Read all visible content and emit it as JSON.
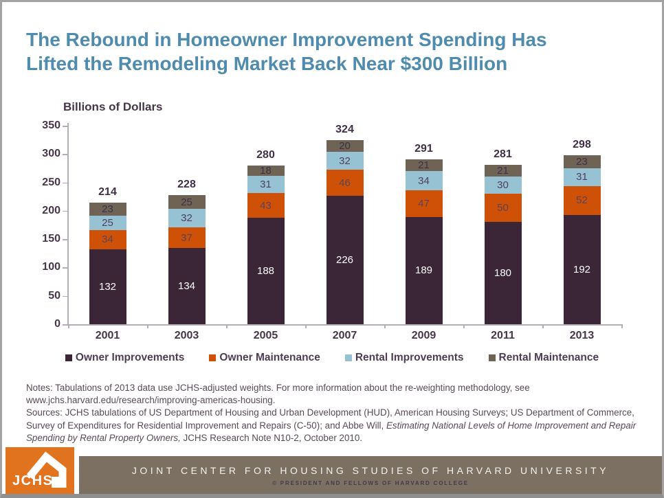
{
  "slide": {
    "title": "The Rebound in Homeowner Improvement Spending Has\nLifted the Remodeling Market Back Near $300 Billion"
  },
  "chart_data": {
    "type": "bar",
    "stacked": true,
    "title": "Billions of Dollars",
    "categories": [
      "2001",
      "2003",
      "2005",
      "2007",
      "2009",
      "2011",
      "2013"
    ],
    "series": [
      {
        "name": "Owner Improvements",
        "color": "#3a2637",
        "label_color": "#ffffff",
        "values": [
          132,
          134,
          188,
          226,
          189,
          180,
          192
        ]
      },
      {
        "name": "Owner Maintenance",
        "color": "#cf5107",
        "label_color": "#5c4456",
        "values": [
          34,
          37,
          43,
          46,
          47,
          50,
          52
        ]
      },
      {
        "name": "Rental Improvements",
        "color": "#96c2d4",
        "label_color": "#4f4159",
        "values": [
          25,
          32,
          31,
          32,
          34,
          30,
          31
        ]
      },
      {
        "name": "Rental Maintenance",
        "color": "#6f6355",
        "label_color": "#3c3145",
        "values": [
          23,
          25,
          18,
          20,
          21,
          21,
          23
        ]
      }
    ],
    "totals": [
      214,
      228,
      280,
      324,
      291,
      281,
      298
    ],
    "ylabel": "Billions of Dollars",
    "xlabel": "",
    "ylim": [
      0,
      350
    ],
    "y_tick_step": 50,
    "grid": false,
    "legend_position": "bottom"
  },
  "notes": {
    "notes_text": "Notes: Tabulations of 2013 data use JCHS-adjusted weights. For more information about the re-weighting methodology, see www.jchs.harvard.edu/research/improving-americas-housing.",
    "sources_part1": "Sources: JCHS tabulations of US Department of Housing and Urban Development (HUD), American Housing Surveys; US Department of Commerce, Survey of Expenditures for Residential Improvement and Repairs (C-50); and Abbe Will, ",
    "sources_italic": "Estimating National Levels of Home Improvement and Repair Spending by Rental Property Owners,",
    "sources_part2": " JCHS Research Note N10-2, October 2010."
  },
  "footer": {
    "logo_text": "JCHS",
    "org_name": "JOINT CENTER FOR HOUSING STUDIES OF HARVARD UNIVERSITY",
    "copyright": "© PRESIDENT AND FELLOWS OF HARVARD COLLEGE"
  },
  "colors": {
    "title_teal": "#4e8bad",
    "axis_text": "#473649",
    "total_label": "#3f3048",
    "footer_bar": "#7c7062",
    "logo_orange": "#e2731e"
  }
}
